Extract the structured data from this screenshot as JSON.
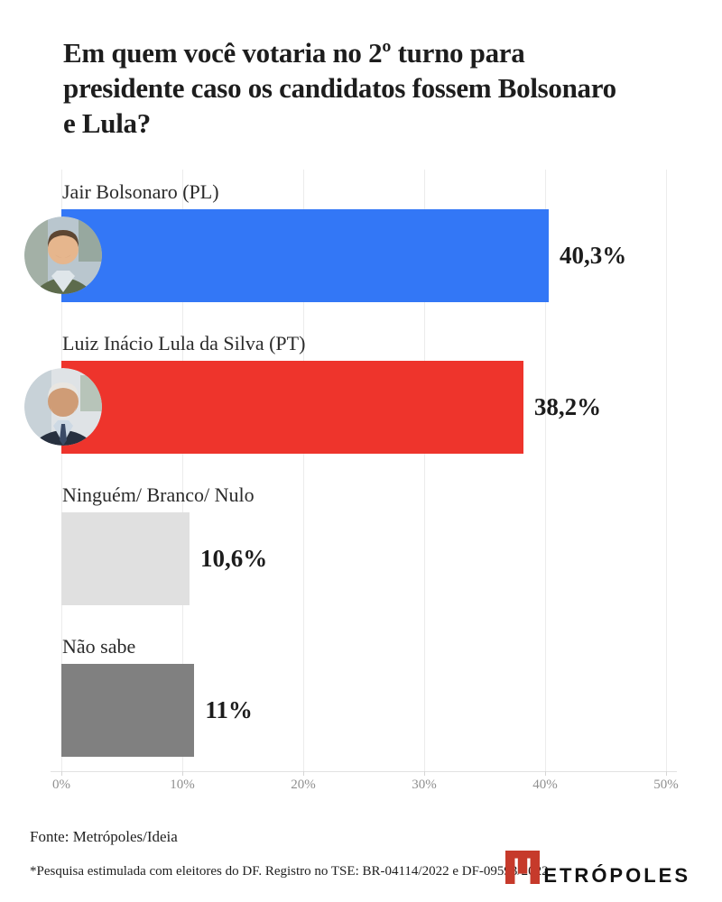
{
  "title": "Em quem você votaria no 2º turno para presidente caso os candidatos fossem Bolsonaro e Lula?",
  "chart_data": {
    "type": "bar",
    "orientation": "horizontal",
    "title": "Em quem você votaria no 2º turno para presidente caso os candidatos fossem Bolsonaro e Lula?",
    "categories": [
      "Jair Bolsonaro (PL)",
      "Luiz Inácio Lula da Silva (PT)",
      "Ninguém/ Branco/ Nulo",
      "Não sabe"
    ],
    "values": [
      40.3,
      38.2,
      10.6,
      11
    ],
    "value_labels": [
      "40,3%",
      "38,2%",
      "10,6%",
      "11%"
    ],
    "bar_colors": [
      "#3377F6",
      "#EE342C",
      "#E0E0E0",
      "#808080"
    ],
    "xlabel": "",
    "ylabel": "",
    "xlim": [
      0,
      50
    ],
    "x_ticks": [
      "0%",
      "10%",
      "20%",
      "30%",
      "40%",
      "50%"
    ],
    "grid": true,
    "legend": false
  },
  "bars": [
    {
      "label": "Jair Bolsonaro (PL)",
      "value": 40.3,
      "value_label": "40,3%",
      "color": "#3377F6",
      "avatar": "bolsonaro-photo"
    },
    {
      "label": "Luiz Inácio Lula da Silva (PT)",
      "value": 38.2,
      "value_label": "38,2%",
      "color": "#EE342C",
      "avatar": "lula-photo"
    },
    {
      "label": "Ninguém/ Branco/ Nulo",
      "value": 10.6,
      "value_label": "10,6%",
      "color": "#E0E0E0",
      "avatar": null
    },
    {
      "label": "Não sabe",
      "value": 11,
      "value_label": "11%",
      "color": "#808080",
      "avatar": null
    }
  ],
  "axis": {
    "ticks": [
      "0%",
      "10%",
      "20%",
      "30%",
      "40%",
      "50%"
    ]
  },
  "footer": {
    "source": "Fonte: Metrópoles/Ideia",
    "note": "*Pesquisa estimulada com eleitores do DF. Registro no TSE: BR-04114/2022 e DF-09593/2022",
    "logo_text": "ETRÓPOLES"
  },
  "colors": {
    "bolsonaro_blue": "#3377F6",
    "lula_red": "#EE342C",
    "light_gray": "#E0E0E0",
    "dark_gray": "#808080",
    "logo_red": "#C63A2B",
    "grid": "#ECECEC",
    "tick_text": "#8F8F8F",
    "text": "#1D1D1D"
  }
}
